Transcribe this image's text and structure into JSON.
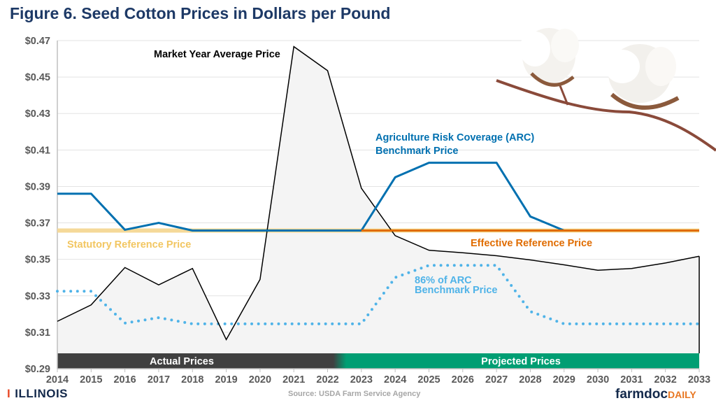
{
  "chart_data": {
    "type": "line",
    "title": "Figure 6. Seed Cotton Prices in Dollars per Pound",
    "x": [
      2014,
      2015,
      2016,
      2017,
      2018,
      2019,
      2020,
      2021,
      2022,
      2023,
      2024,
      2025,
      2026,
      2027,
      2028,
      2029,
      2030,
      2031,
      2032,
      2033
    ],
    "ylim": [
      0.29,
      0.47
    ],
    "yticks": [
      0.29,
      0.31,
      0.33,
      0.35,
      0.37,
      0.39,
      0.41,
      0.43,
      0.45,
      0.47
    ],
    "ytick_labels": [
      "$0.29",
      "$0.31",
      "$0.33",
      "$0.35",
      "$0.37",
      "$0.39",
      "$0.41",
      "$0.43",
      "$0.45",
      "$0.47"
    ],
    "grid": true,
    "series": [
      {
        "name": "Market Year Average Price",
        "color": "#000000",
        "style": "solid-filled",
        "values": [
          0.316,
          0.325,
          0.3455,
          0.336,
          0.345,
          0.306,
          0.339,
          0.4667,
          0.4535,
          0.389,
          0.363,
          0.355,
          0.3536,
          0.352,
          0.3497,
          0.347,
          0.344,
          0.345,
          0.348,
          0.3517
        ]
      },
      {
        "name": "Agriculture Risk Coverage (ARC) Benchmark Price",
        "color": "#0070b0",
        "style": "solid",
        "values": [
          0.386,
          0.386,
          0.3662,
          0.37,
          0.3658,
          0.3658,
          0.3658,
          0.3658,
          0.3658,
          0.3658,
          0.395,
          0.403,
          0.403,
          0.403,
          0.3735,
          0.3658,
          0.3658,
          0.3658,
          0.3658,
          0.3658
        ]
      },
      {
        "name": "86% of ARC Benchmark Price",
        "color": "#4fb3e8",
        "style": "dotted",
        "values": [
          0.3325,
          0.3325,
          0.315,
          0.318,
          0.3146,
          0.3146,
          0.3146,
          0.3146,
          0.3146,
          0.3146,
          0.34,
          0.3467,
          0.3467,
          0.3467,
          0.3214,
          0.3146,
          0.3146,
          0.3146,
          0.3146,
          0.3146
        ]
      },
      {
        "name": "Statutory Reference Price",
        "color": "#f5d999",
        "style": "thick",
        "x_range": [
          2014,
          2023
        ],
        "value": 0.3658
      },
      {
        "name": "Effective Reference Price",
        "color": "#e06c00",
        "style": "solid",
        "x_range": [
          2023,
          2033
        ],
        "value": 0.3658
      }
    ],
    "annotations": {
      "myap": "Market Year Average Price",
      "arc_line1": "Agriculture Risk Coverage (ARC)",
      "arc_line2": "Benchmark Price",
      "pct_line1": "86% of ARC",
      "pct_line2": "Benchmark Price",
      "statutory": "Statutory Reference Price",
      "effective": "Effective Reference Price"
    },
    "bands": [
      {
        "label": "Actual Prices",
        "x_range": [
          2014,
          2022
        ],
        "color": "#404040"
      },
      {
        "label": "Projected Prices",
        "x_range": [
          2022,
          2033
        ],
        "color": "#009e73"
      }
    ]
  },
  "footer": {
    "source": "Source: USDA Farm Service Agency",
    "left_logo": "ILLINOIS",
    "right_logo_a": "farmdoc",
    "right_logo_b": "DAILY"
  }
}
